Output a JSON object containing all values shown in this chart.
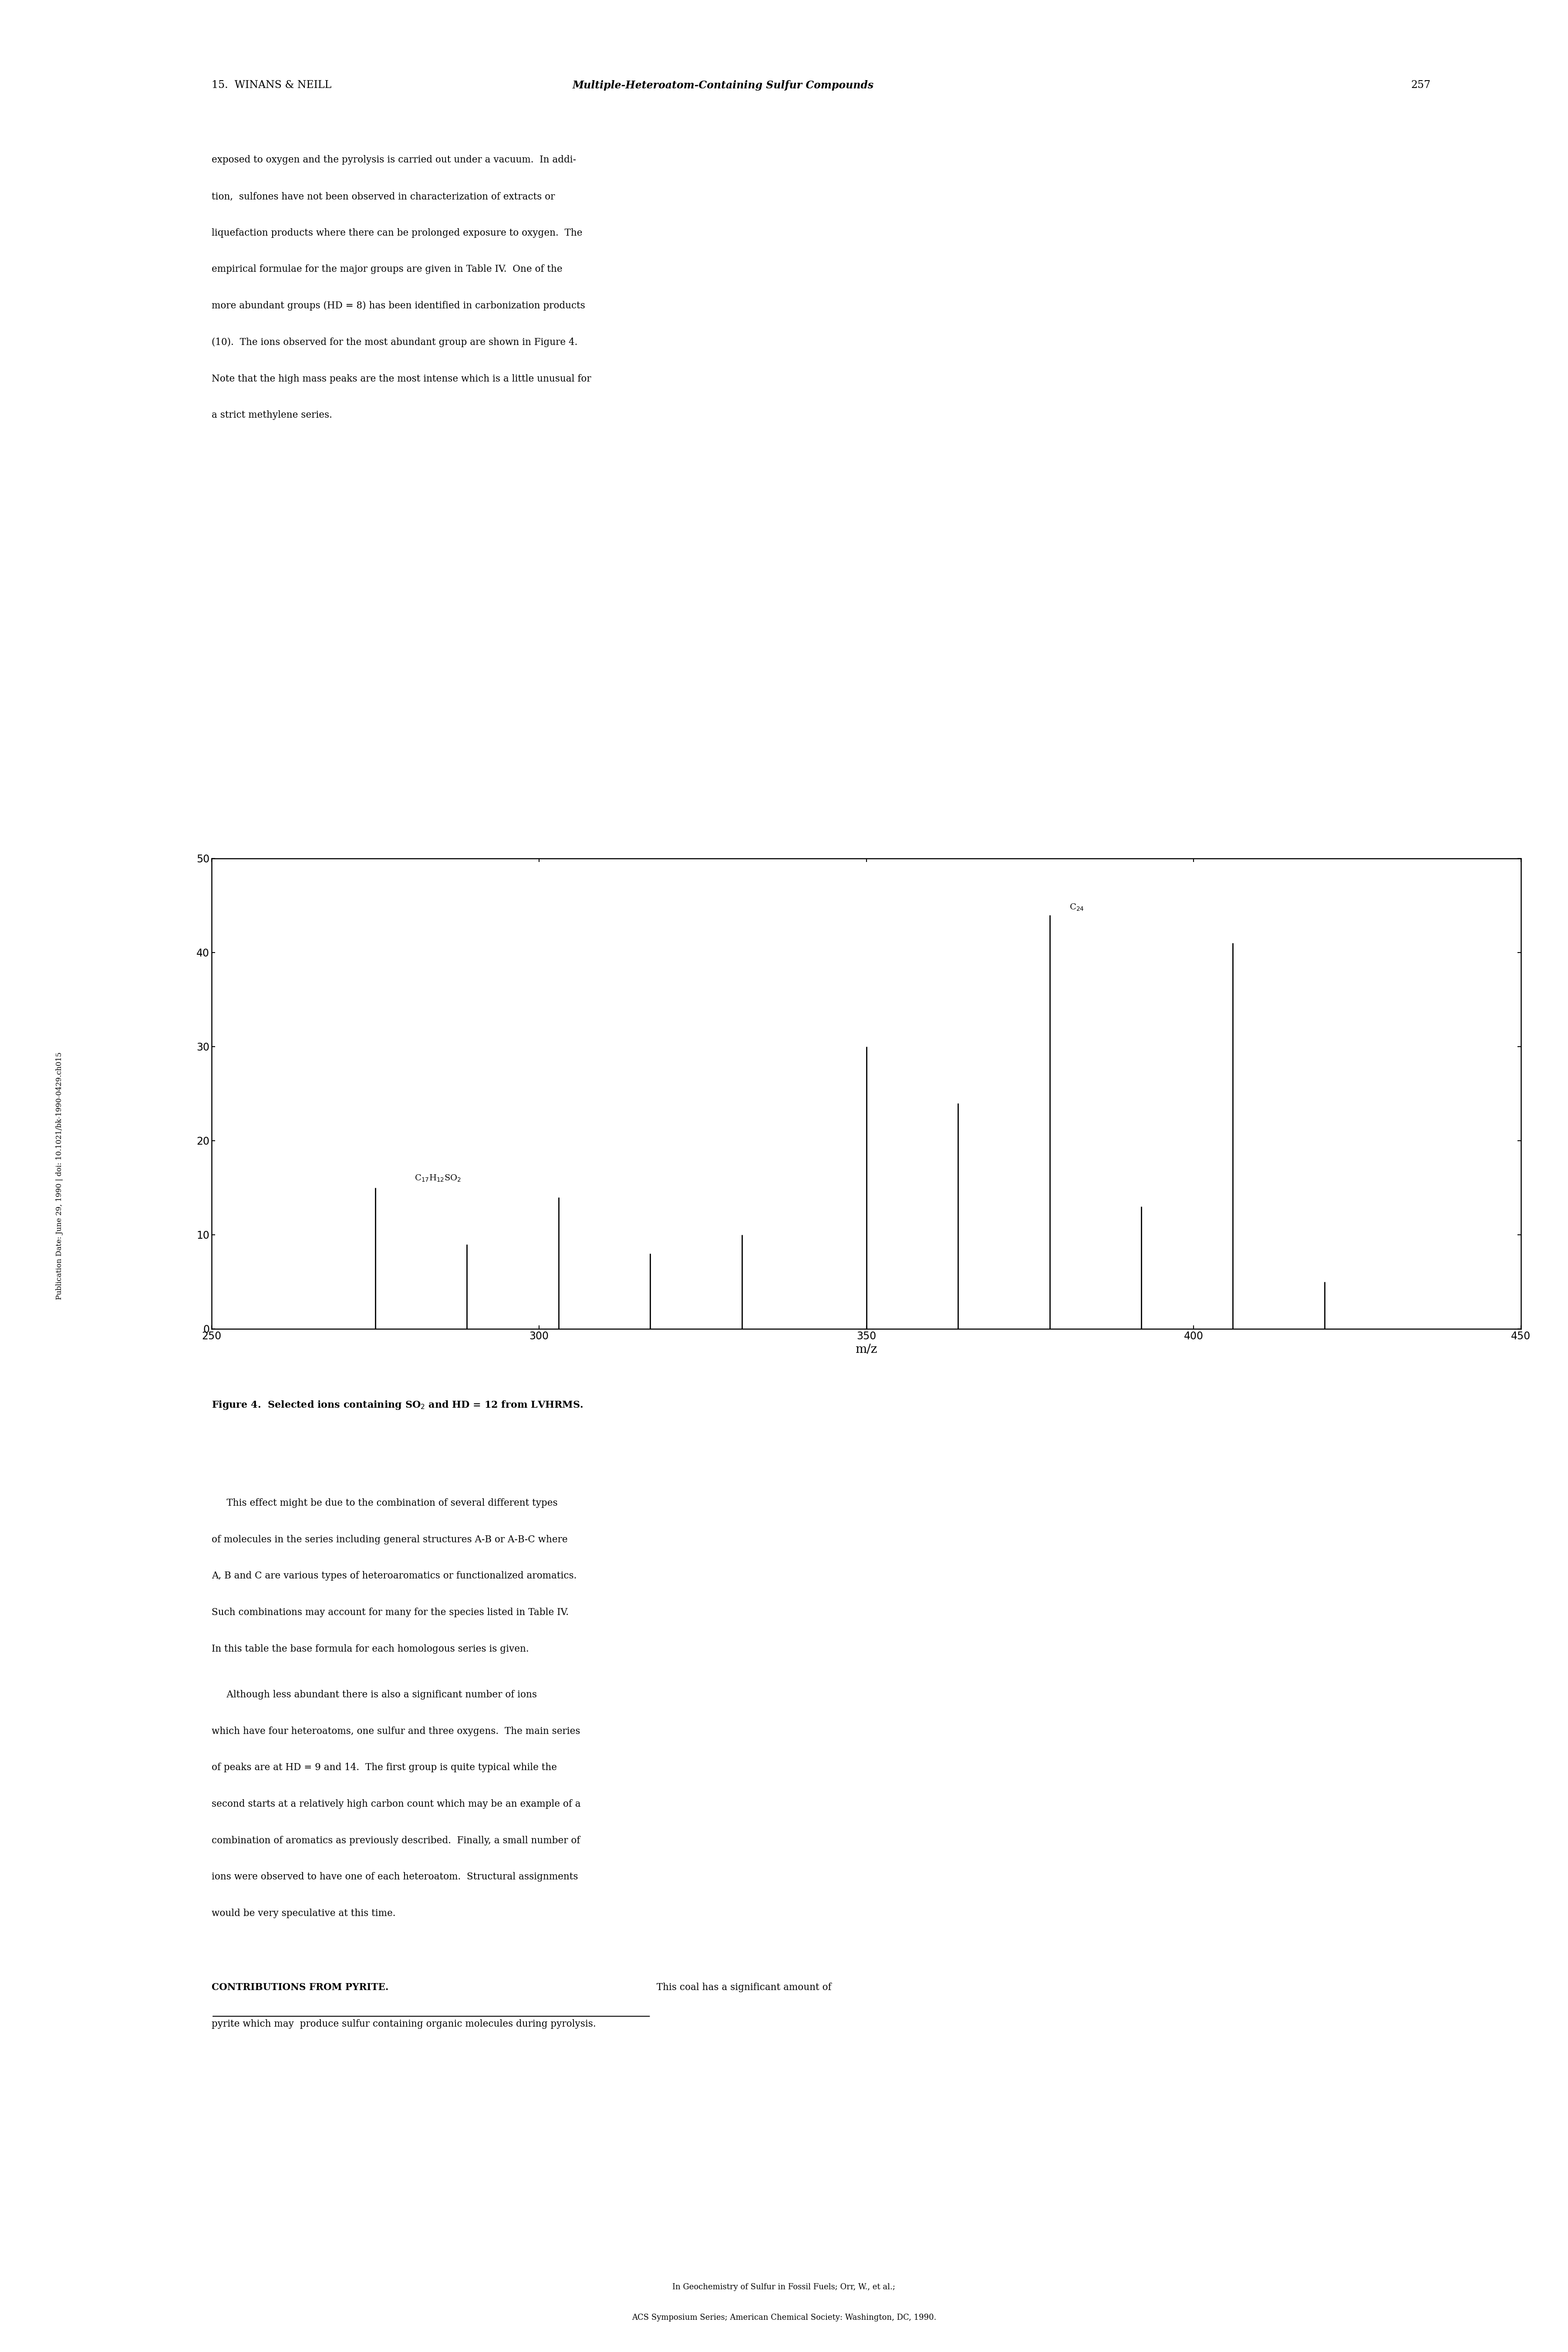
{
  "title_left": "15.  WINANS & NEILL",
  "title_italic": "Multiple-Heteroatom-Containing Sulfur Compounds",
  "title_page": "257",
  "para1_lines": [
    "exposed to oxygen and the pyrolysis is carried out under a vacuum.  In addi-",
    "tion,  sulfones have not been observed in characterization of extracts or",
    "liquefaction products where there can be prolonged exposure to oxygen.  The",
    "empirical formulae for the major groups are given in Table IV.  One of the",
    "more abundant groups (HD = 8) has been identified in carbonization products",
    "(10).  The ions observed for the most abundant group are shown in Figure 4.",
    "Note that the high mass peaks are the most intense which is a little unusual for",
    "a strict methylene series."
  ],
  "para2_lines": [
    "     This effect might be due to the combination of several different types",
    "of molecules in the series including general structures A-B or A-B-C where",
    "A, B and C are various types of heteroaromatics or functionalized aromatics.",
    "Such combinations may account for many for the species listed in Table IV.",
    "In this table the base formula for each homologous series is given."
  ],
  "para3_lines": [
    "     Although less abundant there is also a significant number of ions",
    "which have four heteroatoms, one sulfur and three oxygens.  The main series",
    "of peaks are at HD = 9 and 14.  The first group is quite typical while the",
    "second starts at a relatively high carbon count which may be an example of a",
    "combination of aromatics as previously described.  Finally, a small number of",
    "ions were observed to have one of each heteroatom.  Structural assignments",
    "would be very speculative at this time."
  ],
  "contrib_header": "CONTRIBUTIONS FROM PYRITE.",
  "contrib_rest": "  This coal has a significant amount of",
  "contrib_line2": "pyrite which may  produce sulfur containing organic molecules during pyrolysis.",
  "footer1": "In Geochemistry of Sulfur in Fossil Fuels; Orr, W., et al.;",
  "footer2": "ACS Symposium Series; American Chemical Society: Washington, DC, 1990.",
  "side_text": "Publication Date: June 29, 1990 | doi: 10.1021/bk-1990-0429.ch015",
  "peaks_mz": [
    275,
    289,
    303,
    317,
    331,
    350,
    364,
    378,
    392,
    406,
    420
  ],
  "peaks_height": [
    15,
    9,
    14,
    8,
    10,
    30,
    24,
    44,
    13,
    41,
    5
  ],
  "ann1_x": 275,
  "ann1_y": 15,
  "ann2_x": 378,
  "ann2_y": 44,
  "xlabel": "m/z",
  "xlim": [
    250,
    450
  ],
  "ylim": [
    0,
    50
  ],
  "yticks": [
    0,
    10,
    20,
    30,
    40,
    50
  ],
  "xticks": [
    250,
    300,
    350,
    400,
    450
  ],
  "bar_color": "#000000",
  "bg_color": "#ffffff"
}
